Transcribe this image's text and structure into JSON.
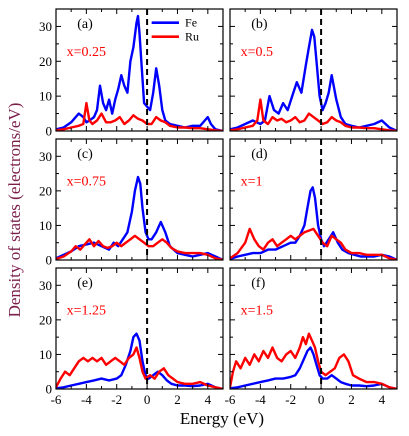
{
  "figure": {
    "ylabel": "Density of states (electrons/eV)",
    "xlabel": "Energy (eV)",
    "ylabel_color": "#7b1f4b",
    "legend": [
      {
        "label": "Fe",
        "color": "#0000ff"
      },
      {
        "label": "Ru",
        "color": "#ff0000"
      }
    ],
    "x_tick_labels_left": [
      "-6",
      "-4",
      "-2",
      "0",
      "2",
      "4"
    ],
    "x_tick_labels_right": [
      "-6",
      "-4",
      "-2",
      "0",
      "2",
      "4"
    ],
    "y_tick_labels": [
      "0",
      "10",
      "20",
      "30"
    ]
  },
  "chart_data": [
    {
      "type": "line",
      "panel": "(a)",
      "annotation": "x=0.25",
      "xlim": [
        -6,
        5
      ],
      "ylim": [
        0,
        35
      ],
      "fermi_level": 0,
      "series": [
        {
          "name": "Fe",
          "color": "#0000ff",
          "x": [
            -6,
            -5.5,
            -5,
            -4.8,
            -4.5,
            -4.2,
            -4,
            -3.8,
            -3.5,
            -3.3,
            -3.1,
            -2.9,
            -2.7,
            -2.5,
            -2.3,
            -2.1,
            -1.9,
            -1.7,
            -1.5,
            -1.3,
            -1.1,
            -0.9,
            -0.7,
            -0.6,
            -0.5,
            -0.35,
            -0.2,
            0,
            0.2,
            0.4,
            0.6,
            0.8,
            1.0,
            1.2,
            1.5,
            2,
            2.5,
            3,
            3.5,
            3.8,
            4,
            4.2,
            4.5,
            5
          ],
          "y": [
            0.5,
            1,
            2.5,
            3.5,
            5,
            4,
            2.5,
            3,
            4,
            6,
            13,
            8,
            6,
            9,
            5,
            9,
            12,
            16,
            13,
            11,
            20,
            24,
            31,
            33,
            28,
            18,
            8,
            7,
            6,
            11,
            18,
            13,
            6,
            3,
            2,
            1.5,
            1,
            1.5,
            1.5,
            3,
            4,
            2,
            0.5,
            0
          ]
        },
        {
          "name": "Ru",
          "color": "#ff0000",
          "x": [
            -6,
            -5.5,
            -5,
            -4.5,
            -4.2,
            -4,
            -3.8,
            -3.6,
            -3.3,
            -3,
            -2.7,
            -2.4,
            -2.1,
            -1.8,
            -1.5,
            -1.2,
            -0.9,
            -0.6,
            -0.3,
            0,
            0.3,
            0.6,
            0.9,
            1.2,
            1.5,
            2,
            2.5,
            3,
            3.5,
            4,
            4.5,
            5
          ],
          "y": [
            0.2,
            0.5,
            1,
            1.5,
            2,
            8,
            3,
            2,
            3,
            5,
            2.5,
            2.5,
            3,
            4,
            2,
            3,
            4.5,
            3.5,
            3,
            2,
            2,
            4,
            3,
            2.5,
            1.5,
            1,
            1,
            0.8,
            0.8,
            0.5,
            0.2,
            0
          ]
        }
      ]
    },
    {
      "type": "line",
      "panel": "(b)",
      "annotation": "x=0.5",
      "xlim": [
        -6,
        5
      ],
      "ylim": [
        0,
        35
      ],
      "fermi_level": 0,
      "series": [
        {
          "name": "Fe",
          "color": "#0000ff",
          "x": [
            -6,
            -5.5,
            -5,
            -4.5,
            -4,
            -3.7,
            -3.4,
            -3.1,
            -2.8,
            -2.5,
            -2.2,
            -1.9,
            -1.6,
            -1.3,
            -1.0,
            -0.8,
            -0.6,
            -0.45,
            -0.3,
            -0.1,
            0.1,
            0.3,
            0.5,
            0.7,
            1.0,
            1.3,
            1.6,
            2,
            2.5,
            3,
            3.5,
            4,
            4.5,
            5
          ],
          "y": [
            0.5,
            1,
            2,
            3,
            2,
            3,
            10,
            6,
            5,
            8,
            6,
            10,
            14,
            11,
            19,
            24,
            29,
            27,
            20,
            10,
            6,
            8,
            11,
            16,
            9,
            4,
            2,
            1.5,
            1,
            1.5,
            2,
            3,
            1,
            0
          ]
        },
        {
          "name": "Ru",
          "color": "#ff0000",
          "x": [
            -6,
            -5.5,
            -5,
            -4.5,
            -4.2,
            -4,
            -3.8,
            -3.5,
            -3.2,
            -2.9,
            -2.6,
            -2.3,
            -2,
            -1.7,
            -1.4,
            -1.1,
            -0.8,
            -0.5,
            -0.2,
            0.1,
            0.4,
            0.7,
            1.0,
            1.3,
            1.6,
            2,
            2.5,
            3,
            3.5,
            4,
            4.5,
            5
          ],
          "y": [
            0.2,
            0.5,
            1,
            1.5,
            3,
            9,
            3,
            2,
            4,
            3,
            3.5,
            2.5,
            3,
            4,
            2.5,
            3,
            5,
            4,
            3,
            2,
            2.5,
            4,
            3,
            2.5,
            1.5,
            1,
            1,
            0.8,
            0.8,
            0.5,
            0.2,
            0
          ]
        }
      ]
    },
    {
      "type": "line",
      "panel": "(c)",
      "annotation": "x=0.75",
      "xlim": [
        -6,
        5
      ],
      "ylim": [
        0,
        35
      ],
      "fermi_level": 0,
      "series": [
        {
          "name": "Fe",
          "color": "#0000ff",
          "x": [
            -6,
            -5.5,
            -5,
            -4.5,
            -4,
            -3.5,
            -3,
            -2.5,
            -2.2,
            -1.9,
            -1.6,
            -1.3,
            -1.0,
            -0.8,
            -0.6,
            -0.45,
            -0.3,
            -0.1,
            0.1,
            0.3,
            0.6,
            0.9,
            1.2,
            1.5,
            2,
            2.5,
            3,
            3.5,
            4,
            4.5,
            5
          ],
          "y": [
            0.5,
            1.5,
            2.5,
            4,
            4.5,
            5,
            4,
            3,
            5,
            4,
            6,
            8,
            14,
            20,
            24,
            22,
            15,
            8,
            6,
            6,
            8,
            11,
            8,
            4,
            2,
            1.5,
            1,
            1.5,
            2,
            1,
            0
          ]
        },
        {
          "name": "Ru",
          "color": "#ff0000",
          "x": [
            -6,
            -5.5,
            -5,
            -4.7,
            -4.4,
            -4.1,
            -3.8,
            -3.5,
            -3.2,
            -2.9,
            -2.6,
            -2.3,
            -2,
            -1.7,
            -1.4,
            -1.1,
            -0.8,
            -0.5,
            -0.2,
            0.1,
            0.4,
            0.7,
            1.0,
            1.3,
            1.6,
            2,
            2.5,
            3,
            3.5,
            4,
            4.5,
            5
          ],
          "y": [
            0.3,
            1,
            2.5,
            4,
            3,
            4.5,
            6,
            4,
            5.5,
            4,
            3.5,
            4,
            5,
            4,
            5,
            6,
            7,
            6,
            5,
            4,
            4,
            5,
            6,
            5,
            3.5,
            2.5,
            2,
            2,
            2,
            1.5,
            0.5,
            0
          ]
        }
      ]
    },
    {
      "type": "line",
      "panel": "(d)",
      "annotation": "x=1",
      "xlim": [
        -6,
        5
      ],
      "ylim": [
        0,
        35
      ],
      "fermi_level": 0,
      "series": [
        {
          "name": "Fe",
          "color": "#0000ff",
          "x": [
            -6,
            -5.5,
            -5,
            -4.5,
            -4,
            -3.5,
            -3,
            -2.5,
            -2,
            -1.7,
            -1.4,
            -1.1,
            -0.9,
            -0.7,
            -0.55,
            -0.4,
            -0.2,
            0,
            0.2,
            0.5,
            0.8,
            1.1,
            1.4,
            1.8,
            2.2,
            2.6,
            3,
            3.5,
            4,
            4.5,
            5
          ],
          "y": [
            0.3,
            1,
            1.5,
            2,
            2,
            3,
            3,
            4,
            5,
            5,
            7,
            10,
            15,
            20,
            21,
            18,
            10,
            6,
            4,
            6,
            8,
            5,
            3,
            2,
            1.5,
            1,
            1,
            1,
            1.5,
            1,
            0
          ]
        },
        {
          "name": "Ru",
          "color": "#ff0000",
          "x": [
            -6,
            -5.5,
            -5,
            -4.7,
            -4.4,
            -4.1,
            -3.8,
            -3.5,
            -3.2,
            -2.9,
            -2.6,
            -2.3,
            -2,
            -1.7,
            -1.4,
            -1.1,
            -0.8,
            -0.5,
            -0.2,
            0.1,
            0.4,
            0.7,
            1.0,
            1.3,
            1.6,
            2,
            2.5,
            3,
            3.5,
            4,
            4.5,
            5
          ],
          "y": [
            0.5,
            2,
            5,
            9,
            6,
            4,
            3,
            5,
            6,
            4,
            5,
            6,
            7,
            6,
            7,
            8,
            8.5,
            9,
            7,
            5,
            4,
            7,
            6,
            5,
            3,
            2,
            2,
            1.5,
            1.5,
            1.5,
            0.5,
            0
          ]
        }
      ]
    },
    {
      "type": "line",
      "panel": "(e)",
      "annotation": "x=1.25",
      "xlim": [
        -6,
        5
      ],
      "ylim": [
        0,
        35
      ],
      "fermi_level": 0,
      "series": [
        {
          "name": "Fe",
          "color": "#0000ff",
          "x": [
            -6,
            -5.5,
            -5,
            -4.5,
            -4,
            -3.5,
            -3,
            -2.5,
            -2,
            -1.7,
            -1.4,
            -1.1,
            -0.9,
            -0.7,
            -0.5,
            -0.3,
            -0.1,
            0.1,
            0.4,
            0.7,
            1.0,
            1.3,
            1.6,
            2,
            2.5,
            3,
            3.5,
            4,
            4.5,
            5
          ],
          "y": [
            0.2,
            0.5,
            1,
            1.5,
            2,
            2.5,
            3,
            2.5,
            3,
            4,
            7,
            11,
            15,
            16,
            14,
            8,
            4,
            3,
            4,
            5,
            4,
            2.5,
            1.5,
            1,
            1,
            0.8,
            1,
            1.5,
            0.5,
            0
          ]
        },
        {
          "name": "Ru",
          "color": "#ff0000",
          "x": [
            -6,
            -5.7,
            -5.4,
            -5.1,
            -4.8,
            -4.5,
            -4.2,
            -3.9,
            -3.6,
            -3.3,
            -3,
            -2.7,
            -2.4,
            -2.1,
            -1.8,
            -1.5,
            -1.2,
            -0.9,
            -0.7,
            -0.5,
            -0.3,
            -0.1,
            0.2,
            0.5,
            0.8,
            1.1,
            1.4,
            1.7,
            2,
            2.5,
            3,
            3.5,
            4,
            4.5,
            5
          ],
          "y": [
            0.5,
            3,
            5,
            4,
            6,
            8,
            9,
            8,
            9,
            8,
            9,
            7,
            8,
            9,
            8,
            7,
            9,
            10,
            12,
            9,
            5,
            3,
            4,
            3,
            5,
            6,
            4,
            3,
            2,
            1.5,
            1.5,
            2,
            1,
            0.5,
            0
          ]
        }
      ]
    },
    {
      "type": "line",
      "panel": "(f)",
      "annotation": "x=1.5",
      "xlim": [
        -6,
        5
      ],
      "ylim": [
        0,
        35
      ],
      "fermi_level": 0,
      "series": [
        {
          "name": "Fe",
          "color": "#0000ff",
          "x": [
            -6,
            -5.5,
            -5,
            -4.5,
            -4,
            -3.5,
            -3,
            -2.5,
            -2,
            -1.7,
            -1.4,
            -1.1,
            -0.9,
            -0.7,
            -0.5,
            -0.3,
            -0.1,
            0.1,
            0.4,
            0.7,
            1.0,
            1.3,
            1.6,
            2,
            2.5,
            3,
            3.5,
            4,
            4.5,
            5
          ],
          "y": [
            0.2,
            0.5,
            1,
            1.5,
            2,
            2.5,
            3,
            3,
            3.5,
            4,
            6,
            9,
            11,
            12,
            10,
            7,
            4,
            3,
            3,
            4,
            3,
            2,
            1.5,
            1,
            1,
            0.8,
            1,
            1.5,
            0.5,
            0
          ]
        },
        {
          "name": "Ru",
          "color": "#ff0000",
          "x": [
            -6,
            -5.8,
            -5.6,
            -5.3,
            -5,
            -4.7,
            -4.4,
            -4.1,
            -3.8,
            -3.5,
            -3.2,
            -2.9,
            -2.6,
            -2.3,
            -2,
            -1.7,
            -1.4,
            -1.2,
            -1,
            -0.8,
            -0.6,
            -0.4,
            -0.2,
            0,
            0.3,
            0.6,
            0.9,
            1.2,
            1.5,
            1.8,
            2.1,
            2.5,
            3,
            3.5,
            4,
            4.5,
            5
          ],
          "y": [
            0.5,
            5,
            8,
            6,
            9,
            7,
            10,
            8,
            11,
            9,
            12,
            9,
            8,
            10,
            11,
            9,
            12,
            15,
            13,
            16,
            14,
            12,
            8,
            5,
            4,
            5,
            6,
            9,
            10,
            8,
            4,
            3,
            2,
            2,
            1.5,
            0.5,
            0
          ]
        }
      ]
    }
  ]
}
